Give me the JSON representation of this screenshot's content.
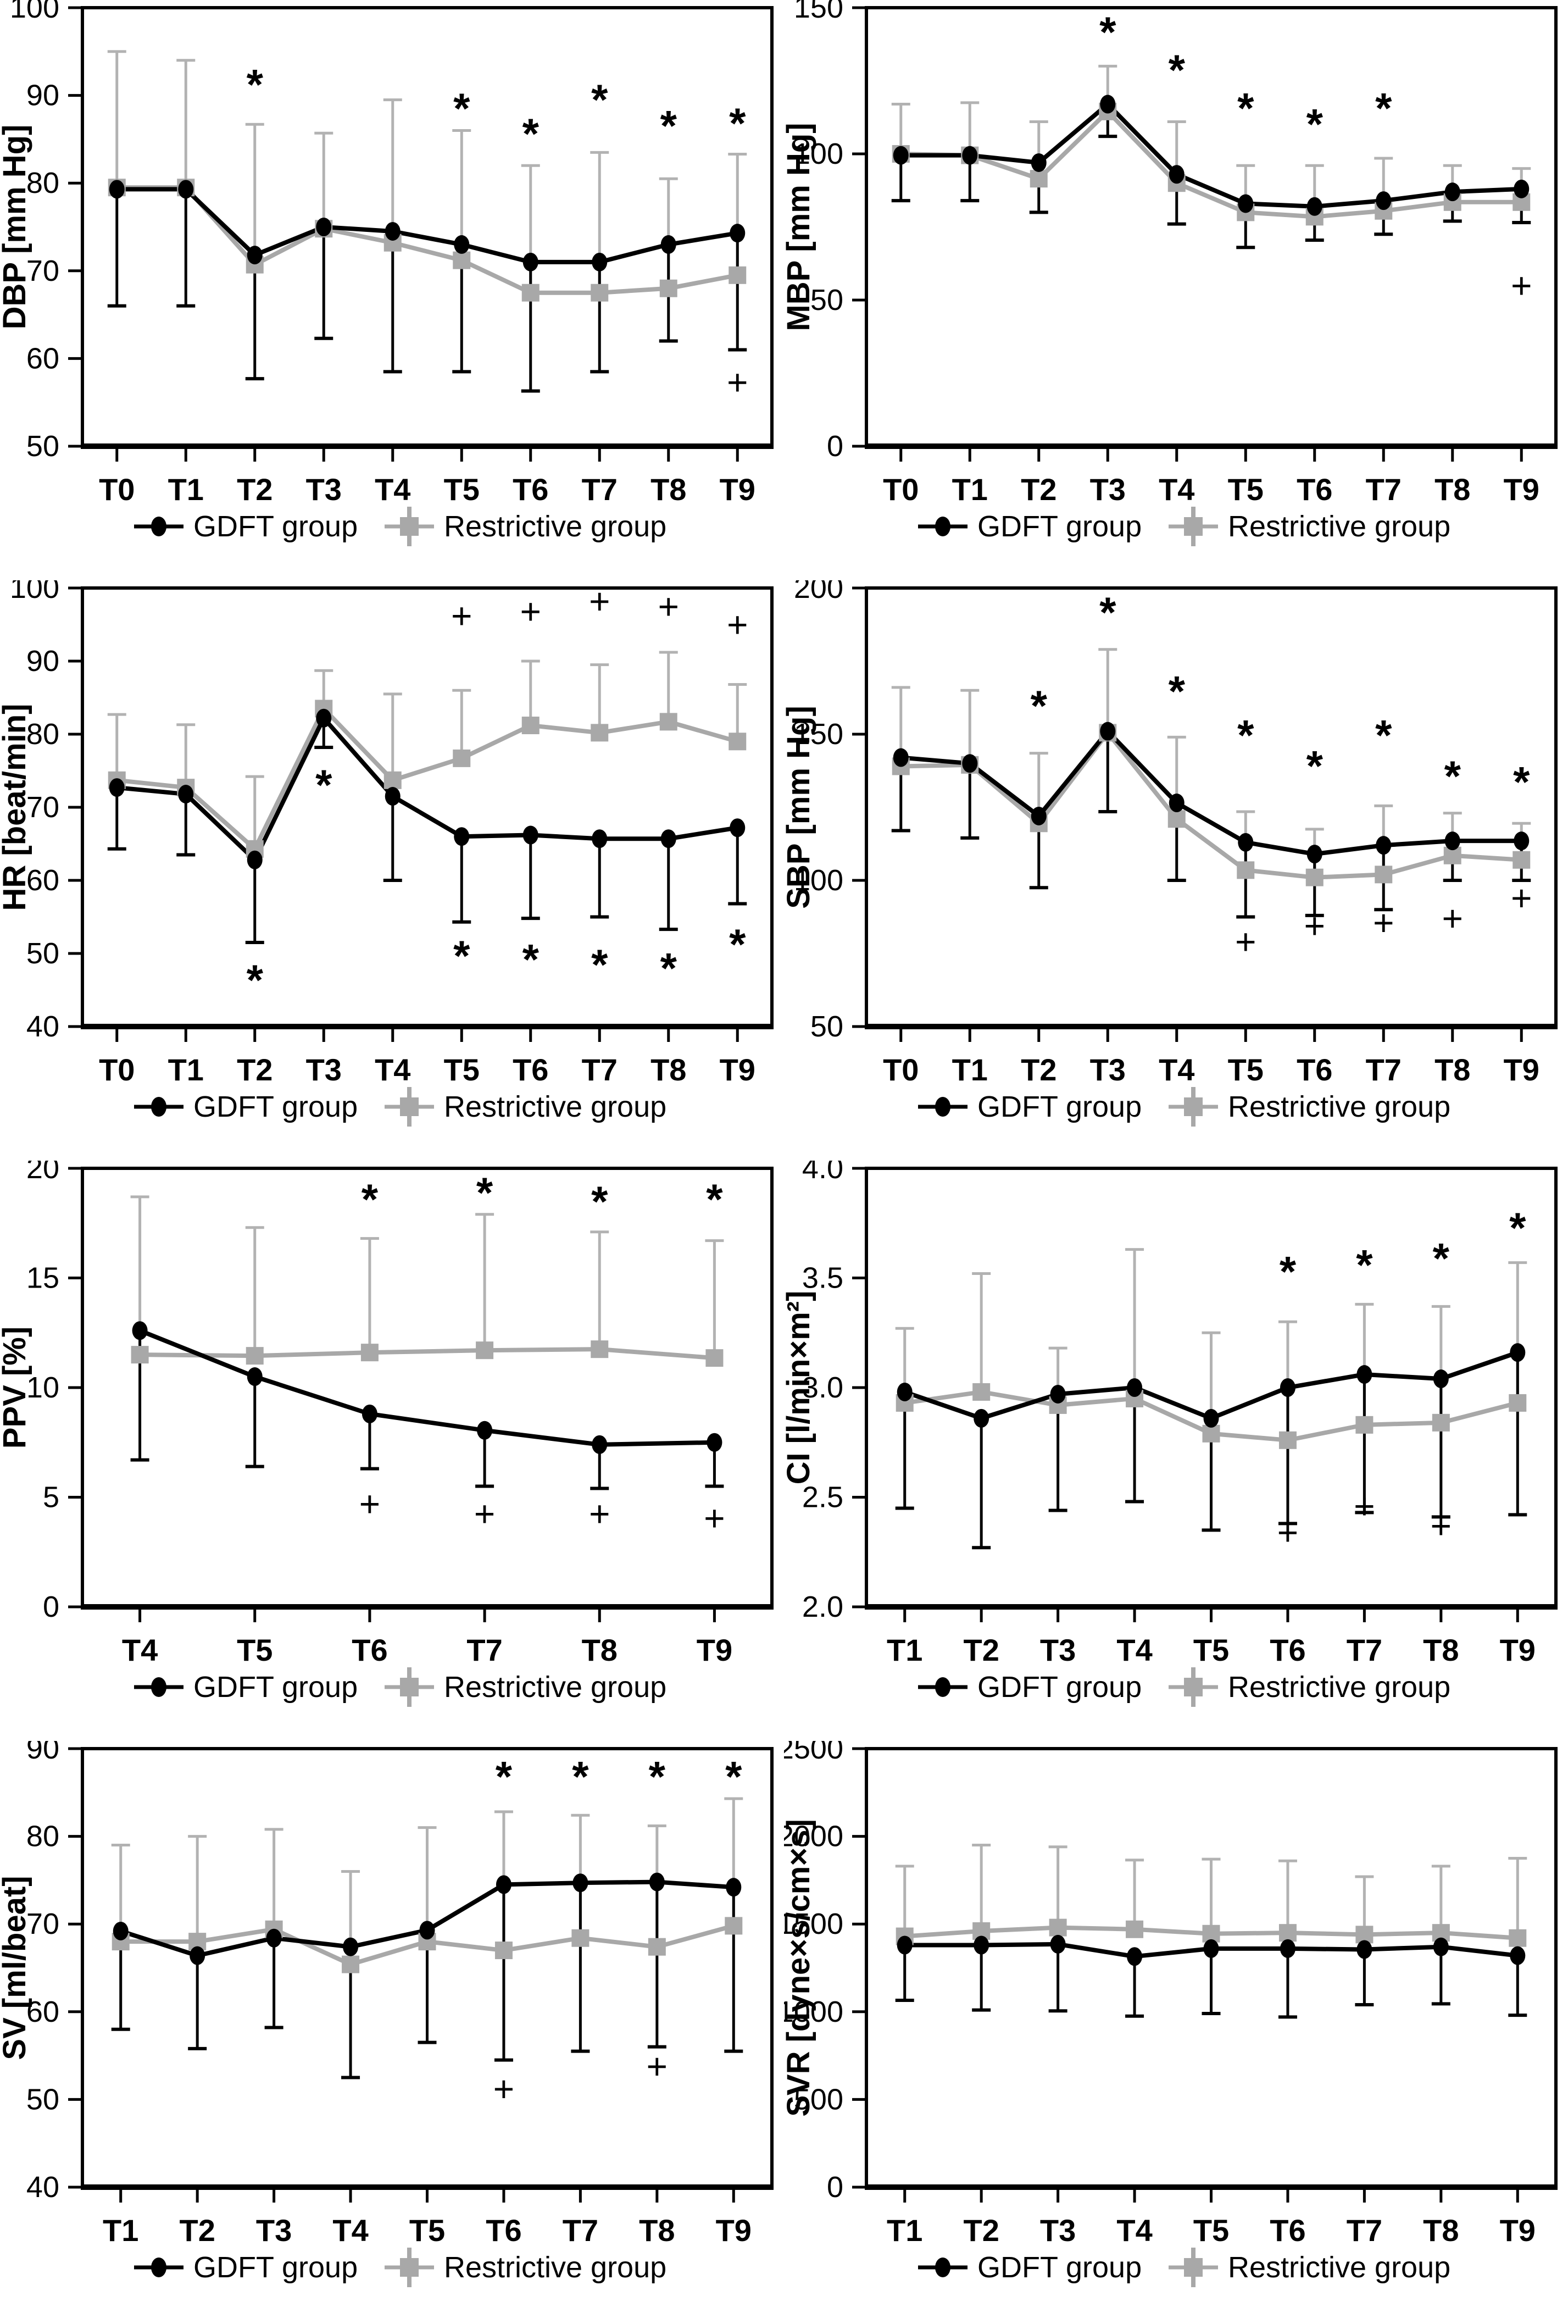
{
  "legend": {
    "gdft_label": "GDFT group",
    "restrictive_label": "Restrictive group"
  },
  "colors": {
    "gdft": "#000000",
    "restrictive": "#a8a8a8",
    "restrictive_whisker": "#b2b2b2",
    "background": "#ffffff"
  },
  "chart_data": [
    {
      "id": "dbp",
      "type": "line",
      "ylabel": "DBP [mm Hg]",
      "ylim": [
        50,
        100
      ],
      "yticks": [
        50,
        60,
        70,
        80,
        90,
        100
      ],
      "ytick_labels": [
        "50",
        "60",
        "70",
        "80",
        "90",
        "100"
      ],
      "categories": [
        "T0",
        "T1",
        "T2",
        "T3",
        "T4",
        "T5",
        "T6",
        "T7",
        "T8",
        "T9"
      ],
      "series": [
        {
          "name": "GDFT group",
          "marker": "circle",
          "values": [
            79.3,
            79.3,
            71.8,
            75.0,
            74.5,
            73.0,
            71.0,
            71.0,
            73.0,
            74.3
          ],
          "err_low": [
            66,
            66,
            57.7,
            62.3,
            58.5,
            58.5,
            56.3,
            58.5,
            62,
            61
          ]
        },
        {
          "name": "Restrictive group",
          "marker": "square",
          "values": [
            79.5,
            79.5,
            70.7,
            74.8,
            73.2,
            71.2,
            67.5,
            67.5,
            68.0,
            69.5
          ],
          "err_high": [
            95,
            94,
            86.7,
            85.7,
            89.5,
            86,
            82,
            83.5,
            80.5,
            83.3
          ]
        }
      ],
      "asterisks": [
        {
          "c": "T2",
          "y": 93
        },
        {
          "c": "T5",
          "y": 90.3
        },
        {
          "c": "T6",
          "y": 87.4
        },
        {
          "c": "T7",
          "y": 91.3
        },
        {
          "c": "T8",
          "y": 88.3
        },
        {
          "c": "T9",
          "y": 88.6
        }
      ],
      "pluses": [
        {
          "c": "T9",
          "y": 57.3
        }
      ]
    },
    {
      "id": "mbp",
      "type": "line",
      "ylabel": "MBP [mm Hg]",
      "ylim": [
        0,
        150
      ],
      "yticks": [
        0,
        50,
        100,
        150
      ],
      "ytick_labels": [
        "0",
        "50",
        "100",
        "150"
      ],
      "categories": [
        "T0",
        "T1",
        "T2",
        "T3",
        "T4",
        "T5",
        "T6",
        "T7",
        "T8",
        "T9"
      ],
      "series": [
        {
          "name": "GDFT group",
          "marker": "circle",
          "values": [
            99.5,
            99.5,
            97,
            117,
            93,
            83,
            82,
            84,
            87,
            88
          ],
          "err_low": [
            84,
            84,
            80,
            106,
            76,
            68,
            70.5,
            72.5,
            77,
            76.5
          ]
        },
        {
          "name": "Restrictive group",
          "marker": "square",
          "values": [
            100,
            99.5,
            91.5,
            114.5,
            90,
            80,
            78.5,
            80.5,
            83.5,
            83.5
          ],
          "err_high": [
            117,
            117.5,
            111,
            130,
            111,
            96,
            96,
            98.5,
            96,
            95
          ]
        }
      ],
      "asterisks": [
        {
          "c": "T3",
          "y": 147
        },
        {
          "c": "T4",
          "y": 134
        },
        {
          "c": "T5",
          "y": 121
        },
        {
          "c": "T6",
          "y": 115.5
        },
        {
          "c": "T7",
          "y": 121
        }
      ],
      "pluses": [
        {
          "c": "T9",
          "y": 55
        }
      ]
    },
    {
      "id": "hr",
      "type": "line",
      "ylabel": "HR [beat/min]",
      "ylim": [
        40,
        100
      ],
      "yticks": [
        40,
        50,
        60,
        70,
        80,
        90,
        100
      ],
      "ytick_labels": [
        "40",
        "50",
        "60",
        "70",
        "80",
        "90",
        "100"
      ],
      "categories": [
        "T0",
        "T1",
        "T2",
        "T3",
        "T4",
        "T5",
        "T6",
        "T7",
        "T8",
        "T9"
      ],
      "series": [
        {
          "name": "GDFT group",
          "marker": "circle",
          "values": [
            72.7,
            71.8,
            62.8,
            82.2,
            71.5,
            66.0,
            66.2,
            65.7,
            65.7,
            67.2
          ],
          "err_low": [
            64.3,
            63.5,
            51.5,
            78.2,
            60,
            54.3,
            54.8,
            55,
            53.3,
            56.8
          ]
        },
        {
          "name": "Restrictive group",
          "marker": "square",
          "values": [
            73.7,
            72.7,
            64.3,
            83.5,
            73.7,
            76.7,
            81.2,
            80.2,
            81.7,
            79.0
          ],
          "err_high": [
            82.7,
            81.3,
            74.2,
            88.7,
            85.5,
            86,
            90,
            89.5,
            91.2,
            86.8
          ]
        }
      ],
      "asterisks": [
        {
          "c": "T2",
          "y": 48.5
        },
        {
          "c": "T3",
          "y": 75.2
        },
        {
          "c": "T5",
          "y": 51.8
        },
        {
          "c": "T6",
          "y": 51.3
        },
        {
          "c": "T7",
          "y": 50.6
        },
        {
          "c": "T8",
          "y": 50.1
        },
        {
          "c": "T9",
          "y": 53.4
        }
      ],
      "pluses": [
        {
          "c": "T5",
          "y": 96.2
        },
        {
          "c": "T6",
          "y": 96.8
        },
        {
          "c": "T7",
          "y": 98.2
        },
        {
          "c": "T8",
          "y": 97.5
        },
        {
          "c": "T9",
          "y": 95.0
        }
      ]
    },
    {
      "id": "sbp",
      "type": "line",
      "ylabel": "SBP [mm Hg]",
      "ylim": [
        50,
        200
      ],
      "yticks": [
        50,
        100,
        150,
        200
      ],
      "ytick_labels": [
        "50",
        "100",
        "150",
        "200"
      ],
      "categories": [
        "T0",
        "T1",
        "T2",
        "T3",
        "T4",
        "T5",
        "T6",
        "T7",
        "T8",
        "T9"
      ],
      "series": [
        {
          "name": "GDFT group",
          "marker": "circle",
          "values": [
            142,
            140,
            122,
            151,
            126.5,
            113,
            109,
            112,
            113.5,
            113.5
          ],
          "err_low": [
            117,
            114.5,
            97.5,
            123.5,
            100,
            87.5,
            88,
            90,
            100,
            100
          ]
        },
        {
          "name": "Restrictive group",
          "marker": "square",
          "values": [
            139,
            139.5,
            119.5,
            150.5,
            121,
            103.5,
            101,
            102,
            108.5,
            107
          ],
          "err_high": [
            166,
            165,
            143.5,
            179,
            149,
            123.5,
            117.5,
            125.5,
            123,
            119.5
          ]
        }
      ],
      "asterisks": [
        {
          "c": "T2",
          "y": 165
        },
        {
          "c": "T3",
          "y": 197
        },
        {
          "c": "T4",
          "y": 170
        },
        {
          "c": "T5",
          "y": 155
        },
        {
          "c": "T6",
          "y": 144.5
        },
        {
          "c": "T7",
          "y": 155
        },
        {
          "c": "T8",
          "y": 141
        },
        {
          "c": "T9",
          "y": 139
        }
      ],
      "pluses": [
        {
          "c": "T5",
          "y": 79
        },
        {
          "c": "T6",
          "y": 84.5
        },
        {
          "c": "T7",
          "y": 85.5
        },
        {
          "c": "T8",
          "y": 87
        },
        {
          "c": "T9",
          "y": 94
        }
      ]
    },
    {
      "id": "ppv",
      "type": "line",
      "ylabel": "PPV [%]",
      "ylim": [
        0,
        20
      ],
      "yticks": [
        0,
        5,
        10,
        15,
        20
      ],
      "ytick_labels": [
        "0",
        "5",
        "10",
        "15",
        "20"
      ],
      "categories": [
        "T4",
        "T5",
        "T6",
        "T7",
        "T8",
        "T9"
      ],
      "series": [
        {
          "name": "GDFT group",
          "marker": "circle",
          "values": [
            12.6,
            10.5,
            8.8,
            8.05,
            7.4,
            7.5
          ],
          "err_low": [
            6.7,
            6.4,
            6.3,
            5.5,
            5.4,
            5.5
          ]
        },
        {
          "name": "Restrictive group",
          "marker": "square",
          "values": [
            11.5,
            11.45,
            11.6,
            11.7,
            11.75,
            11.35
          ],
          "err_high": [
            18.7,
            17.3,
            16.8,
            17.9,
            17.1,
            16.7
          ]
        }
      ],
      "asterisks": [
        {
          "c": "T6",
          "y": 19.3
        },
        {
          "c": "T7",
          "y": 19.6
        },
        {
          "c": "T8",
          "y": 19.2
        },
        {
          "c": "T9",
          "y": 19.3
        }
      ],
      "pluses": [
        {
          "c": "T6",
          "y": 4.7
        },
        {
          "c": "T7",
          "y": 4.25
        },
        {
          "c": "T8",
          "y": 4.25
        },
        {
          "c": "T9",
          "y": 4.05
        }
      ]
    },
    {
      "id": "ci",
      "type": "line",
      "ylabel": "CI [l/min×m²]",
      "ylim": [
        2.0,
        4.0
      ],
      "yticks": [
        2.0,
        2.5,
        3.0,
        3.5,
        4.0
      ],
      "ytick_labels": [
        "2.0",
        "2.5",
        "3.0",
        "3.5",
        "4.0"
      ],
      "categories": [
        "T1",
        "T2",
        "T3",
        "T4",
        "T5",
        "T6",
        "T7",
        "T8",
        "T9"
      ],
      "series": [
        {
          "name": "GDFT group",
          "marker": "circle",
          "values": [
            2.98,
            2.86,
            2.97,
            3.0,
            2.86,
            3.0,
            3.06,
            3.04,
            3.16
          ],
          "err_low": [
            2.45,
            2.27,
            2.44,
            2.48,
            2.35,
            2.38,
            2.43,
            2.41,
            2.42
          ]
        },
        {
          "name": "Restrictive group",
          "marker": "square",
          "values": [
            2.93,
            2.98,
            2.92,
            2.95,
            2.79,
            2.76,
            2.83,
            2.84,
            2.93
          ],
          "err_high": [
            3.27,
            3.52,
            3.18,
            3.63,
            3.25,
            3.3,
            3.38,
            3.37,
            3.57
          ]
        }
      ],
      "asterisks": [
        {
          "c": "T6",
          "y": 3.6
        },
        {
          "c": "T7",
          "y": 3.63
        },
        {
          "c": "T8",
          "y": 3.66
        },
        {
          "c": "T9",
          "y": 3.8
        }
      ],
      "pluses": [
        {
          "c": "T6",
          "y": 2.34
        },
        {
          "c": "T7",
          "y": 2.46
        },
        {
          "c": "T8",
          "y": 2.37
        }
      ]
    },
    {
      "id": "sv",
      "type": "line",
      "ylabel": "SV [ml/beat]",
      "ylim": [
        40,
        90
      ],
      "yticks": [
        40,
        50,
        60,
        70,
        80,
        90
      ],
      "ytick_labels": [
        "40",
        "50",
        "60",
        "70",
        "80",
        "90"
      ],
      "categories": [
        "T1",
        "T2",
        "T3",
        "T4",
        "T5",
        "T6",
        "T7",
        "T8",
        "T9"
      ],
      "series": [
        {
          "name": "GDFT group",
          "marker": "circle",
          "values": [
            69.2,
            66.4,
            68.4,
            67.4,
            69.3,
            74.5,
            74.7,
            74.8,
            74.2
          ],
          "err_low": [
            58,
            55.8,
            58.2,
            52.5,
            56.5,
            54.5,
            55.5,
            56,
            55.5
          ]
        },
        {
          "name": "Restrictive group",
          "marker": "square",
          "values": [
            68,
            68,
            69.4,
            65.4,
            68,
            67,
            68.4,
            67.4,
            69.8
          ],
          "err_high": [
            79,
            80,
            80.8,
            76,
            81,
            82.8,
            82.4,
            81.2,
            84.3
          ]
        }
      ],
      "asterisks": [
        {
          "c": "T6",
          "y": 88.6
        },
        {
          "c": "T7",
          "y": 88.6
        },
        {
          "c": "T8",
          "y": 88.6
        },
        {
          "c": "T9",
          "y": 88.6
        }
      ],
      "pluses": [
        {
          "c": "T6",
          "y": 51.2
        },
        {
          "c": "T8",
          "y": 53.8
        }
      ]
    },
    {
      "id": "svr",
      "type": "line",
      "ylabel": "SVR [dyne×s/cm×s]",
      "ylim": [
        0,
        2500
      ],
      "yticks": [
        0,
        500,
        1000,
        1500,
        2000,
        2500
      ],
      "ytick_labels": [
        "0",
        "500",
        "1000",
        "1500",
        "2000",
        "2500"
      ],
      "categories": [
        "T1",
        "T2",
        "T3",
        "T4",
        "T5",
        "T6",
        "T7",
        "T8",
        "T9"
      ],
      "series": [
        {
          "name": "GDFT group",
          "marker": "circle",
          "values": [
            1380,
            1380,
            1385,
            1315,
            1360,
            1360,
            1355,
            1370,
            1320
          ],
          "err_low": [
            1065,
            1010,
            1005,
            975,
            990,
            970,
            1040,
            1045,
            980
          ]
        },
        {
          "name": "Restrictive group",
          "marker": "square",
          "values": [
            1430,
            1460,
            1480,
            1470,
            1445,
            1450,
            1440,
            1450,
            1420
          ],
          "err_high": [
            1830,
            1950,
            1940,
            1865,
            1870,
            1860,
            1770,
            1830,
            1875
          ]
        }
      ],
      "asterisks": [],
      "pluses": []
    }
  ]
}
